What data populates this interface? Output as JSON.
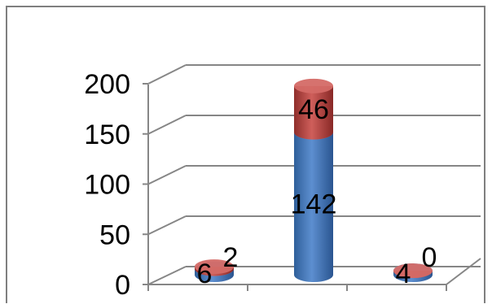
{
  "chart_data": {
    "type": "bar",
    "stacked": true,
    "three_d": true,
    "categories": [
      "",
      "",
      ""
    ],
    "series": [
      {
        "values": [
          6,
          142,
          4
        ],
        "color": "#4f81bd"
      },
      {
        "values": [
          2,
          46,
          0
        ],
        "color": "#c0504d"
      }
    ],
    "ylim": [
      0,
      200
    ],
    "yticks": [
      "0",
      "50",
      "100",
      "150",
      "200"
    ],
    "grid": true,
    "legend": "none"
  }
}
